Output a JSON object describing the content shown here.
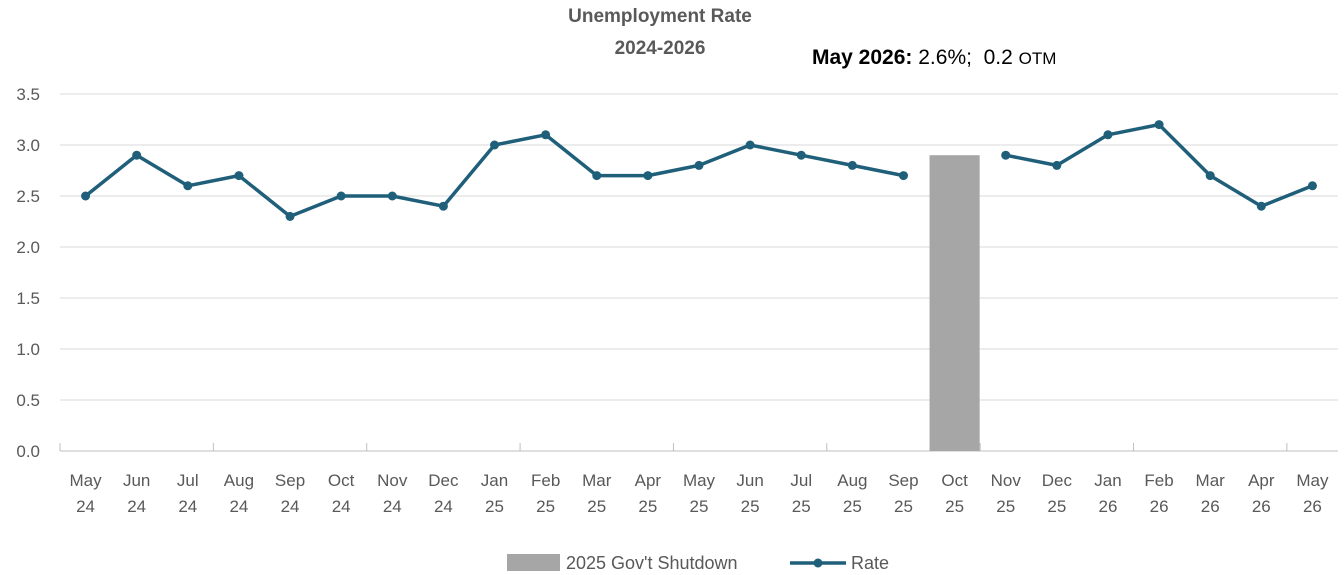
{
  "chart_data": {
    "type": "line",
    "title": [
      "Unemployment Rate",
      "2024-2026"
    ],
    "annotation": {
      "label": "May 2026:",
      "value": "2.6%;",
      "change": "0.2",
      "change_unit": "OTM"
    },
    "categories": [
      [
        "May",
        "24"
      ],
      [
        "Jun",
        "24"
      ],
      [
        "Jul",
        "24"
      ],
      [
        "Aug",
        "24"
      ],
      [
        "Sep",
        "24"
      ],
      [
        "Oct",
        "24"
      ],
      [
        "Nov",
        "24"
      ],
      [
        "Dec",
        "24"
      ],
      [
        "Jan",
        "25"
      ],
      [
        "Feb",
        "25"
      ],
      [
        "Mar",
        "25"
      ],
      [
        "Apr",
        "25"
      ],
      [
        "May",
        "25"
      ],
      [
        "Jun",
        "25"
      ],
      [
        "Jul",
        "25"
      ],
      [
        "Aug",
        "25"
      ],
      [
        "Sep",
        "25"
      ],
      [
        "Oct",
        "25"
      ],
      [
        "Nov",
        "25"
      ],
      [
        "Dec",
        "25"
      ],
      [
        "Jan",
        "26"
      ],
      [
        "Feb",
        "26"
      ],
      [
        "Mar",
        "26"
      ],
      [
        "Apr",
        "26"
      ],
      [
        "May",
        "26"
      ]
    ],
    "series": [
      {
        "name": "Rate",
        "type": "line",
        "color": "#1F5F7A",
        "values": [
          2.5,
          2.9,
          2.6,
          2.7,
          2.3,
          2.5,
          2.5,
          2.4,
          3.0,
          3.1,
          2.7,
          2.7,
          2.8,
          3.0,
          2.9,
          2.8,
          2.7,
          null,
          2.9,
          2.8,
          3.1,
          3.2,
          2.7,
          2.4,
          2.6
        ]
      },
      {
        "name": "2025 Gov't Shutdown",
        "type": "bar",
        "color": "#A6A6A6",
        "category_index": 17,
        "value": 2.9
      }
    ],
    "ylim": [
      0,
      3.5
    ],
    "yticks": [
      "0.0",
      "0.5",
      "1.0",
      "1.5",
      "2.0",
      "2.5",
      "3.0",
      "3.5"
    ],
    "grid": true,
    "legend": "bottom-center"
  }
}
